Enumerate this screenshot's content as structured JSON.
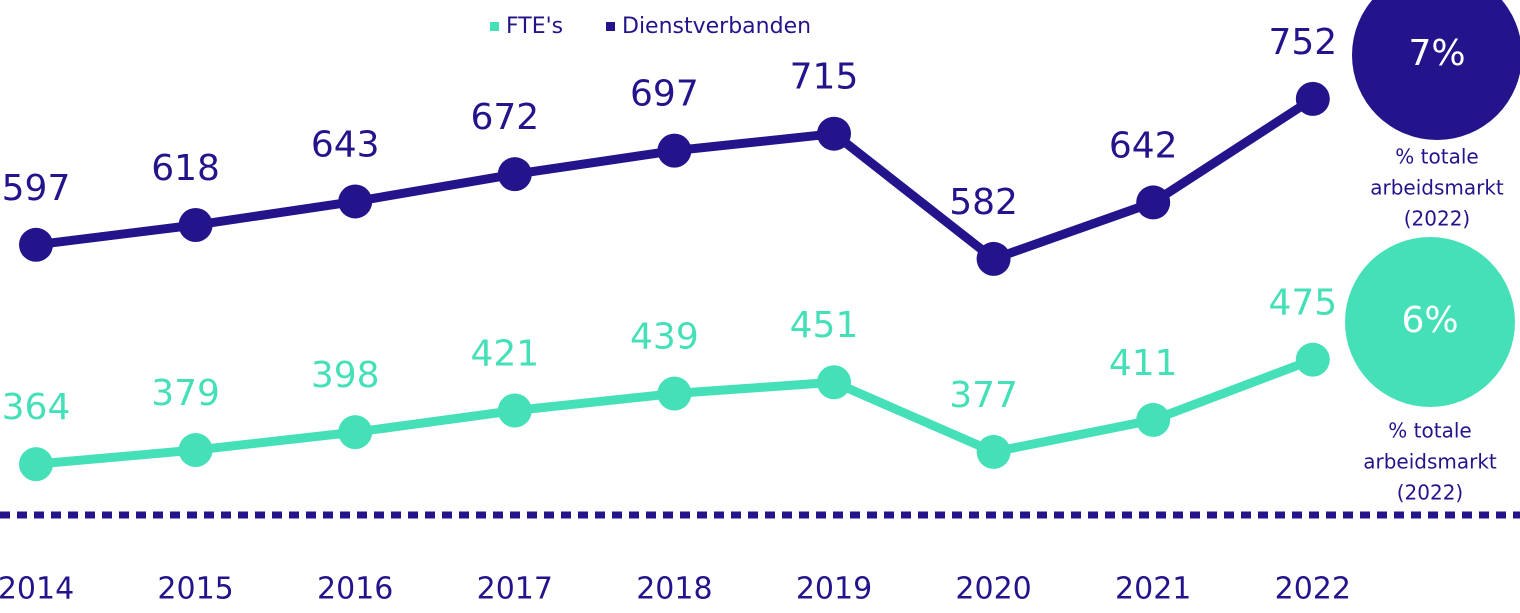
{
  "chart_data": {
    "type": "line",
    "categories": [
      "2014",
      "2015",
      "2016",
      "2017",
      "2018",
      "2019",
      "2020",
      "2021",
      "2022"
    ],
    "series": [
      {
        "name": "FTE's",
        "color": "#45e0b8",
        "values": [
          364,
          379,
          398,
          421,
          439,
          451,
          377,
          411,
          475
        ]
      },
      {
        "name": "Dienstverbanden",
        "color": "#23148c",
        "values": [
          597,
          618,
          643,
          672,
          697,
          715,
          582,
          642,
          752
        ]
      }
    ],
    "ylim": [
      310,
      857
    ],
    "legend": "top",
    "callouts": [
      {
        "value": 7,
        "label": "7%",
        "color": "#23148c",
        "caption": [
          "% totale",
          "arbeidsmarkt",
          "(2022)"
        ]
      },
      {
        "value": 6,
        "label": "6%",
        "color": "#45e0b8",
        "caption": [
          "% totale",
          "arbeidsmarkt",
          "(2022)"
        ]
      }
    ]
  }
}
